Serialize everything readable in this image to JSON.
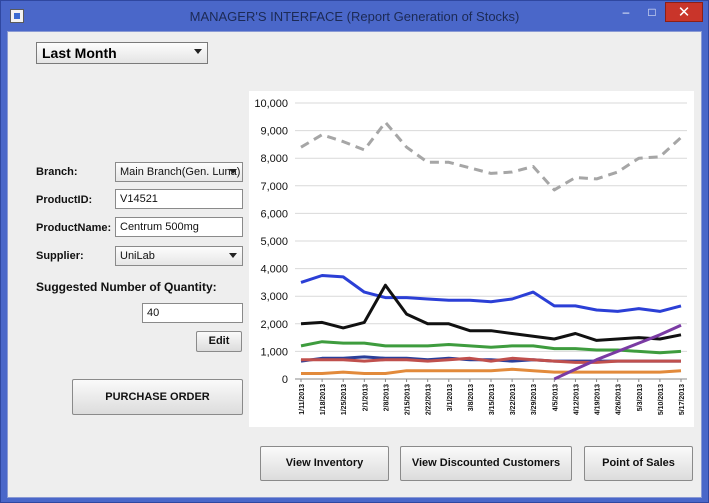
{
  "window": {
    "title": "MANAGER'S INTERFACE (Report Generation of Stocks)",
    "min_glyph": "–",
    "max_glyph": "□",
    "close_glyph": "✕"
  },
  "period": {
    "selected": "Last Month"
  },
  "form": {
    "branch_label": "Branch:",
    "branch_value": "Main Branch(Gen. Luna)",
    "productid_label": "ProductID:",
    "productid_value": "V14521",
    "productname_label": "ProductName:",
    "productname_value": "Centrum 500mg",
    "supplier_label": "Supplier:",
    "supplier_value": "UniLab",
    "suggested_label": "Suggested Number of Quantity:",
    "suggested_value": "40",
    "edit_label": "Edit"
  },
  "actions": {
    "purchase_order": "PURCHASE ORDER",
    "view_inventory": "View Inventory",
    "view_discounted": "View Discounted Customers",
    "point_of_sales": "Point of Sales"
  },
  "chart_data": {
    "type": "line",
    "title": "",
    "xlabel": "",
    "ylabel": "",
    "ylim": [
      0,
      10000
    ],
    "yticks": [
      "0",
      "1,000",
      "2,000",
      "3,000",
      "4,000",
      "5,000",
      "6,000",
      "7,000",
      "8,000",
      "9,000",
      "10,000"
    ],
    "x": [
      "1/11/2013",
      "1/18/2013",
      "1/25/2013",
      "2/1/2013",
      "2/8/2013",
      "2/15/2013",
      "2/22/2013",
      "3/1/2013",
      "3/8/2013",
      "3/15/2013",
      "3/22/2013",
      "3/29/2013",
      "4/5/2013",
      "4/12/2013",
      "4/19/2013",
      "4/26/2013",
      "5/3/2013",
      "5/10/2013",
      "5/17/2013"
    ],
    "grid": true,
    "legend": "none",
    "series": [
      {
        "color": "#a6a6a6",
        "dashed": true,
        "values": [
          8400,
          8850,
          8600,
          8300,
          9300,
          8400,
          7850,
          7850,
          7650,
          7450,
          7500,
          7700,
          6850,
          7300,
          7250,
          7500,
          8000,
          8050,
          8750
        ]
      },
      {
        "color": "#2b3fd6",
        "dashed": false,
        "values": [
          3500,
          3750,
          3700,
          3150,
          2950,
          2950,
          2900,
          2850,
          2850,
          2800,
          2900,
          3150,
          2650,
          2650,
          2500,
          2450,
          2550,
          2450,
          2650
        ]
      },
      {
        "color": "#111111",
        "dashed": false,
        "values": [
          2000,
          2050,
          1850,
          2050,
          3400,
          2350,
          2000,
          2000,
          1750,
          1750,
          1650,
          1550,
          1450,
          1650,
          1400,
          1450,
          1500,
          1450,
          1600
        ]
      },
      {
        "color": "#3e9c3e",
        "dashed": false,
        "values": [
          1200,
          1350,
          1300,
          1300,
          1200,
          1200,
          1200,
          1250,
          1200,
          1150,
          1200,
          1200,
          1100,
          1100,
          1050,
          1050,
          1000,
          950,
          1000
        ]
      },
      {
        "color": "#2a3f9a",
        "dashed": false,
        "values": [
          650,
          750,
          750,
          800,
          750,
          750,
          700,
          750,
          700,
          700,
          650,
          700,
          650,
          650,
          650,
          650,
          650,
          650,
          650
        ]
      },
      {
        "color": "#c0504d",
        "dashed": false,
        "values": [
          700,
          700,
          700,
          650,
          700,
          700,
          650,
          700,
          750,
          650,
          750,
          700,
          650,
          600,
          600,
          650,
          650,
          650,
          650
        ]
      },
      {
        "color": "#e28a3b",
        "dashed": false,
        "values": [
          200,
          200,
          250,
          200,
          200,
          300,
          300,
          300,
          300,
          300,
          350,
          300,
          250,
          250,
          250,
          250,
          250,
          250,
          300
        ]
      },
      {
        "color": "#7a3aa3",
        "dashed": false,
        "values": [
          null,
          null,
          null,
          null,
          null,
          null,
          null,
          null,
          null,
          null,
          null,
          null,
          0,
          350,
          700,
          1000,
          1300,
          1600,
          1950
        ]
      }
    ]
  }
}
